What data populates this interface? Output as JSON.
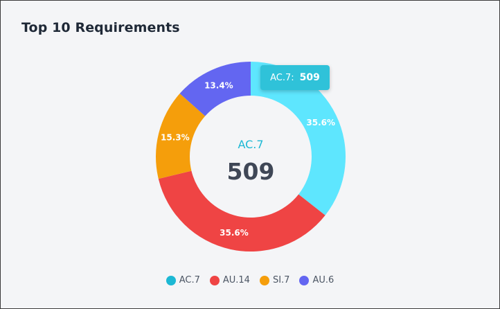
{
  "card": {
    "title": "Top 10 Requirements"
  },
  "tooltip": {
    "label": "AC.7:",
    "value": "509"
  },
  "center": {
    "label": "AC.7",
    "value": "509"
  },
  "colors": {
    "AC.7": "#5ee6fe",
    "AU.14": "#ef4444",
    "SI.7": "#f59e0b",
    "AU.6": "#6366f1",
    "legend_AC.7": "#1cb8d4",
    "center_label": "#1cb8d4",
    "center_value": "#3f4756"
  },
  "chart_data": {
    "type": "pie",
    "categories": [
      "AC.7",
      "AU.14",
      "SI.7",
      "AU.6"
    ],
    "values": [
      509,
      509,
      219,
      192
    ],
    "labels": [
      "35.6%",
      "35.6%",
      "15.3%",
      "13.4%"
    ],
    "legend": [
      "AC.7",
      "AU.14",
      "SI.7",
      "AU.6"
    ],
    "legend_position": "bottom",
    "title": "Top 10 Requirements"
  }
}
